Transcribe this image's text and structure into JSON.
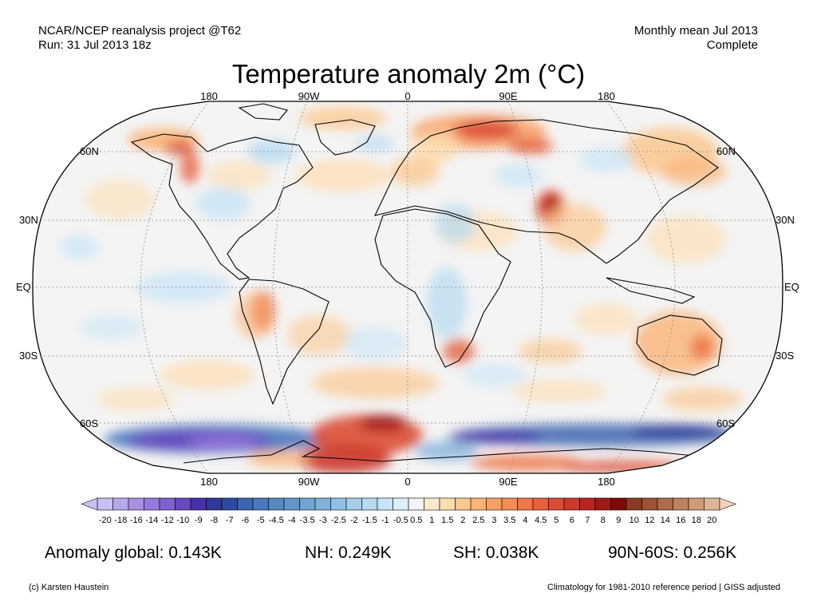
{
  "header": {
    "line1_left": "NCAR/NCEP reanalysis project @T62",
    "line2_left": "Run: 31 Jul 2013 18z",
    "line1_right": "Monthly mean Jul 2013",
    "line2_right": "Complete"
  },
  "title": "Temperature anomaly 2m (°C)",
  "longitude_labels": [
    "180",
    "90W",
    "0",
    "90E",
    "180"
  ],
  "latitude_labels": [
    "60N",
    "30N",
    "EQ",
    "30S",
    "60S"
  ],
  "colorbar": {
    "ticks": [
      "-20",
      "-18",
      "-16",
      "-14",
      "-12",
      "-10",
      "-9",
      "-8",
      "-7",
      "-6",
      "-5",
      "-4.5",
      "-4",
      "-3.5",
      "-3",
      "-2.5",
      "-2",
      "-1.5",
      "-1",
      "-0.5",
      "0.5",
      "1",
      "1.5",
      "2",
      "2.5",
      "3",
      "3.5",
      "4",
      "4.5",
      "5",
      "6",
      "7",
      "8",
      "9",
      "10",
      "12",
      "14",
      "16",
      "18",
      "20"
    ],
    "colors": [
      "#c8c0f0",
      "#b8a8ec",
      "#a890e4",
      "#9878dc",
      "#8060d0",
      "#6848c0",
      "#4830a8",
      "#303898",
      "#2c4aa0",
      "#3c64b0",
      "#4a78bc",
      "#5688c4",
      "#6296cc",
      "#70a4d4",
      "#80b2dc",
      "#92c0e4",
      "#a4cdea",
      "#b6d9f0",
      "#c8e4f6",
      "#dcf0fa",
      "#f4f4f4",
      "#fdeacc",
      "#fddcae",
      "#fcc890",
      "#fab478",
      "#f8a064",
      "#f48c54",
      "#ee7648",
      "#e6603c",
      "#dc4c34",
      "#cc382c",
      "#b82424",
      "#a01818",
      "#7e0a0a",
      "#8a3a24",
      "#9c5236",
      "#ae6a4a",
      "#c0825e",
      "#d09c78",
      "#deb696"
    ]
  },
  "stats": {
    "global": "Anomaly global: 0.143K",
    "nh": "NH: 0.249K",
    "sh": "SH: 0.038K",
    "arctic": "90N-60S: 0.256K"
  },
  "footer": {
    "left": "(c) Karsten Haustein",
    "right": "Climatology for 1981-2010 reference period | GISS adjusted"
  }
}
